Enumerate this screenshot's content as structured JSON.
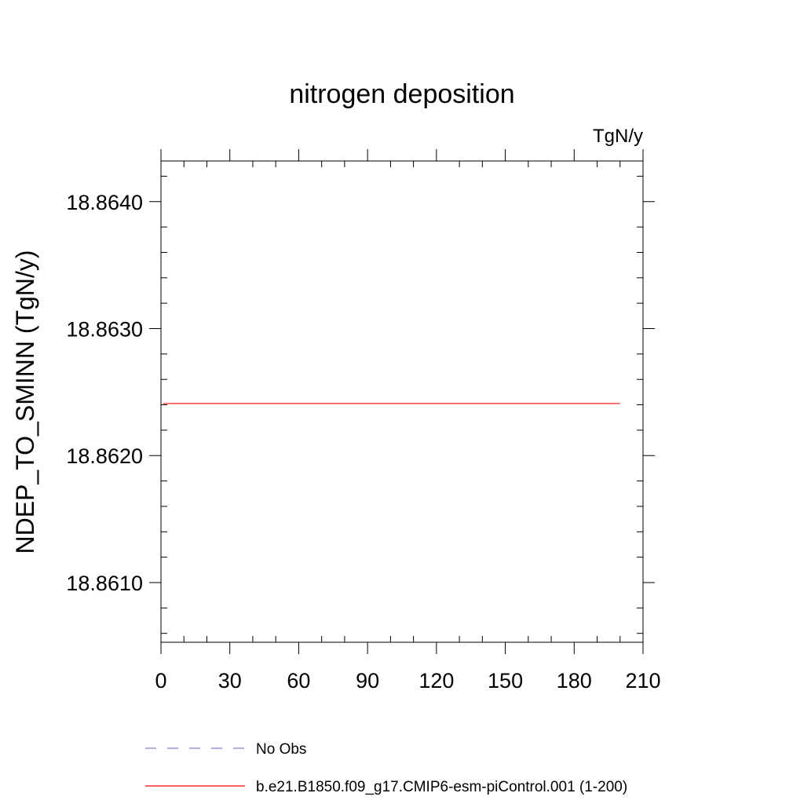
{
  "chart_data": {
    "type": "line",
    "title": "nitrogen deposition",
    "units_label": "TgN/y",
    "ylabel": "NDEP_TO_SMINN  (TgN/y)",
    "xlabel": "",
    "xlim": [
      0,
      210
    ],
    "ylim": [
      18.86053,
      18.86432
    ],
    "x_ticks": [
      0,
      30,
      60,
      90,
      120,
      150,
      180,
      210
    ],
    "x_tick_labels": [
      "0",
      "30",
      "60",
      "90",
      "120",
      "150",
      "180",
      "210"
    ],
    "x_minor_step": 10,
    "y_ticks": [
      18.861,
      18.862,
      18.863,
      18.864
    ],
    "y_tick_labels": [
      "18.8610",
      "18.8620",
      "18.8630",
      "18.8640"
    ],
    "y_minor_step": 0.0002,
    "grid": false,
    "legend_position": "bottom",
    "series": [
      {
        "name": "b.e21.B1850.f09_g17.CMIP6-esm-piControl.001 (1-200)",
        "color": "#ff0000",
        "style": "solid",
        "x": [
          1,
          200
        ],
        "y": [
          18.86241,
          18.86241
        ]
      }
    ],
    "legend": [
      {
        "label": "No Obs",
        "color": "#8080c0",
        "style": "dashed"
      },
      {
        "label": "b.e21.B1850.f09_g17.CMIP6-esm-piControl.001 (1-200)",
        "color": "#ff0000",
        "style": "solid"
      }
    ]
  }
}
